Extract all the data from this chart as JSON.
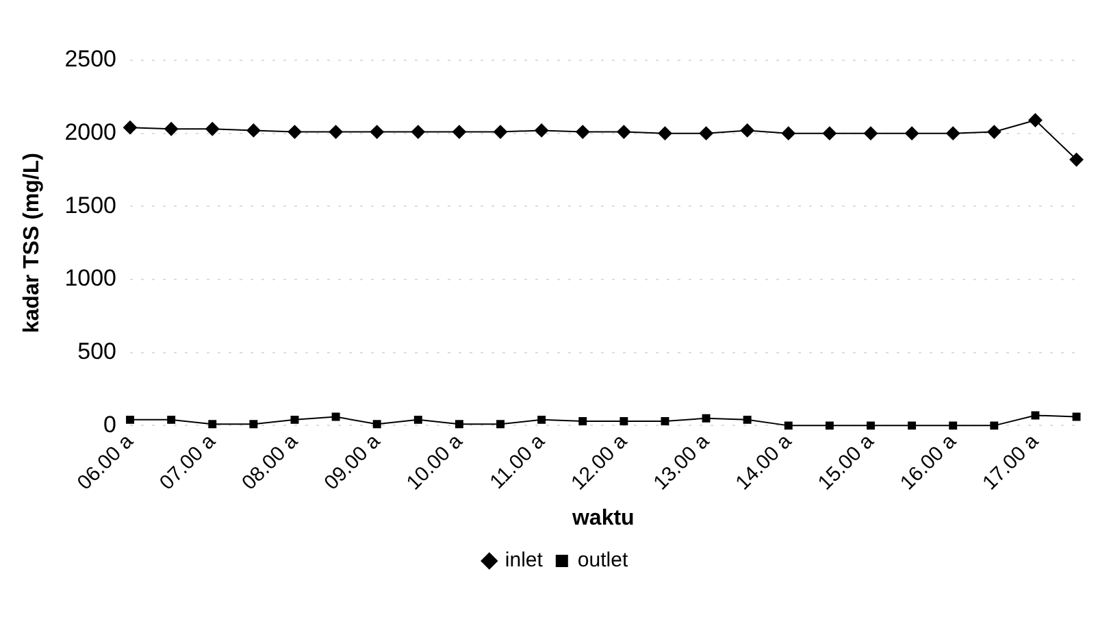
{
  "chart_data": {
    "type": "line",
    "xlabel": "waktu",
    "ylabel": "kadar TSS (mg/L)",
    "categories": [
      "06.00 a",
      null,
      "07.00 a",
      null,
      "08.00 a",
      null,
      "09.00 a",
      null,
      "10.00 a",
      null,
      "11.00 a",
      null,
      "12.00 a",
      null,
      "13.00 a",
      null,
      "14.00 a",
      null,
      "15.00 a",
      null,
      "16.00 a",
      null,
      "17.00 a",
      null
    ],
    "series": [
      {
        "name": "inlet",
        "color": "#000000",
        "marker": "diamond",
        "values": [
          2040,
          2030,
          2030,
          2020,
          2010,
          2010,
          2010,
          2010,
          2010,
          2010,
          2020,
          2010,
          2010,
          2000,
          2000,
          2020,
          2000,
          2000,
          2000,
          2000,
          2000,
          2010,
          2090,
          1820
        ]
      },
      {
        "name": "outlet",
        "color": "#000000",
        "marker": "square",
        "values": [
          40,
          40,
          10,
          10,
          40,
          60,
          10,
          40,
          10,
          10,
          40,
          30,
          30,
          30,
          50,
          40,
          0,
          0,
          0,
          0,
          0,
          0,
          70,
          60
        ]
      }
    ],
    "ylim": [
      0,
      2500
    ],
    "yticks": [
      0,
      500,
      1000,
      1500,
      2000,
      2500
    ],
    "grid": "y",
    "legend": "bottom",
    "line_style": "solid"
  }
}
